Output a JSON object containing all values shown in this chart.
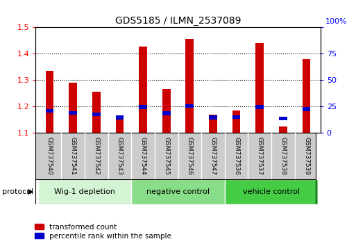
{
  "title": "GDS5185 / ILMN_2537089",
  "samples": [
    "GSM737540",
    "GSM737541",
    "GSM737542",
    "GSM737543",
    "GSM737544",
    "GSM737545",
    "GSM737546",
    "GSM737547",
    "GSM737536",
    "GSM737537",
    "GSM737538",
    "GSM737539"
  ],
  "transformed_count": [
    1.335,
    1.29,
    1.255,
    1.16,
    1.425,
    1.265,
    1.455,
    1.17,
    1.185,
    1.44,
    1.125,
    1.38
  ],
  "percentile_rank_pct": [
    21,
    19,
    17.5,
    14.5,
    24.5,
    18.5,
    25.5,
    14.5,
    15,
    24.5,
    13.5,
    22.5
  ],
  "ylim_left": [
    1.1,
    1.5
  ],
  "ylim_right": [
    0,
    100
  ],
  "yticks_left": [
    1.1,
    1.2,
    1.3,
    1.4,
    1.5
  ],
  "yticks_right": [
    0,
    25,
    50,
    75,
    100
  ],
  "groups": [
    {
      "label": "Wig-1 depletion",
      "start": 0,
      "end": 4,
      "color": "#d4f5d4"
    },
    {
      "label": "negative control",
      "start": 4,
      "end": 8,
      "color": "#88dd88"
    },
    {
      "label": "vehicle control",
      "start": 8,
      "end": 12,
      "color": "#44cc44"
    }
  ],
  "bar_color": "#cc0000",
  "percentile_color": "#0000cc",
  "bar_width": 0.35,
  "tick_label_area_color": "#cccccc",
  "protocol_label": "protocol",
  "gridline_y": [
    1.2,
    1.3,
    1.4
  ]
}
